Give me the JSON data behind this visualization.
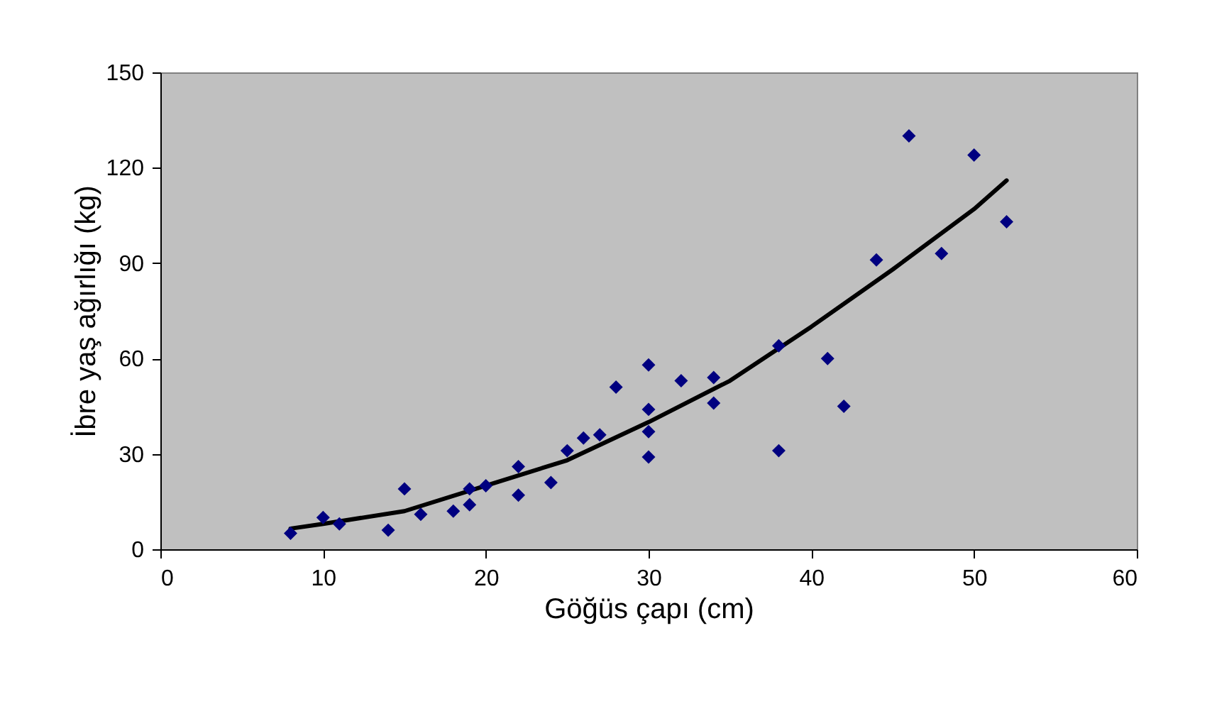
{
  "chart_data": {
    "type": "scatter",
    "xlabel": "Göğüs çapı (cm)",
    "ylabel": "İbre yaş ağırlığı (kg)",
    "xlim": [
      0,
      60
    ],
    "xticks": [
      0,
      10,
      20,
      30,
      40,
      50,
      60
    ],
    "ylim": [
      0,
      150
    ],
    "yticks": [
      0,
      30,
      60,
      90,
      120,
      150
    ],
    "grid": false,
    "marker": "diamond",
    "series": [
      {
        "color": "#000080",
        "x": [
          8,
          10,
          11,
          14,
          15,
          16,
          18,
          19,
          19,
          20,
          22,
          22,
          24,
          25,
          26,
          27,
          28,
          30,
          30,
          30,
          30,
          32,
          34,
          34,
          38,
          38,
          41,
          42,
          44,
          46,
          48,
          50,
          52
        ],
        "values": [
          5,
          10,
          8,
          6,
          19,
          11,
          12,
          19,
          14,
          20,
          17,
          26,
          21,
          31,
          35,
          36,
          51,
          58,
          44,
          37,
          29,
          53,
          54,
          46,
          64,
          31,
          60,
          45,
          91,
          130,
          93,
          124,
          103
        ]
      },
      {
        "type": "line",
        "color": "#000000",
        "line_style": "solid",
        "marker": "none",
        "x": [
          8,
          10,
          15,
          20,
          25,
          30,
          35,
          40,
          45,
          50,
          52
        ],
        "values": [
          6.5,
          8,
          12,
          20,
          28,
          40,
          53,
          70,
          88,
          107,
          116
        ]
      }
    ]
  }
}
